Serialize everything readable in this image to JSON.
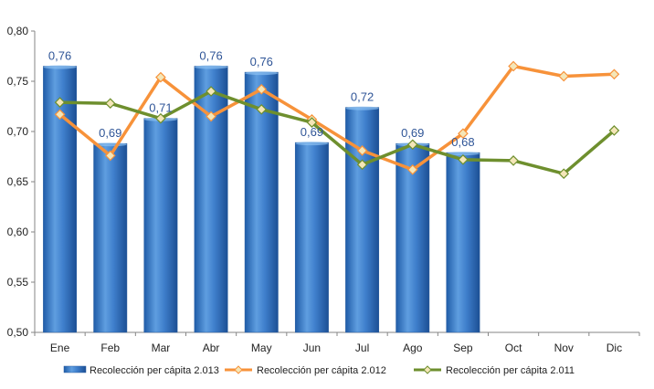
{
  "chart_data": {
    "type": "bar",
    "categories": [
      "Ene",
      "Feb",
      "Mar",
      "Abr",
      "May",
      "Jun",
      "Jul",
      "Ago",
      "Sep",
      "Oct",
      "Nov",
      "Dic"
    ],
    "ylim": [
      0.5,
      0.8
    ],
    "y_ticks": [
      "0,50",
      "0,55",
      "0,60",
      "0,65",
      "0,70",
      "0,75",
      "0,80"
    ],
    "series": [
      {
        "name": "Recolección per cápita 2.013",
        "kind": "bar",
        "color": "#3a78c3",
        "values": [
          0.765,
          0.688,
          0.713,
          0.765,
          0.759,
          0.689,
          0.724,
          0.688,
          0.679,
          null,
          null,
          null
        ],
        "labels": [
          "0,76",
          "0,69",
          "0,71",
          "0,76",
          "0,76",
          "0,69",
          "0,72",
          "0,69",
          "0,68",
          "",
          "",
          ""
        ]
      },
      {
        "name": "Recolección per cápita 2.012",
        "kind": "line",
        "color": "#f7923a",
        "values": [
          0.717,
          0.676,
          0.754,
          0.715,
          0.742,
          0.712,
          0.681,
          0.662,
          0.698,
          0.765,
          0.755,
          0.757
        ]
      },
      {
        "name": "Recolección per cápita 2.011",
        "kind": "line",
        "color": "#6e8f2e",
        "values": [
          0.729,
          0.728,
          0.713,
          0.74,
          0.722,
          0.709,
          0.667,
          0.687,
          0.672,
          0.671,
          0.658,
          0.701
        ]
      }
    ],
    "grid": false,
    "legend_position": "bottom"
  }
}
